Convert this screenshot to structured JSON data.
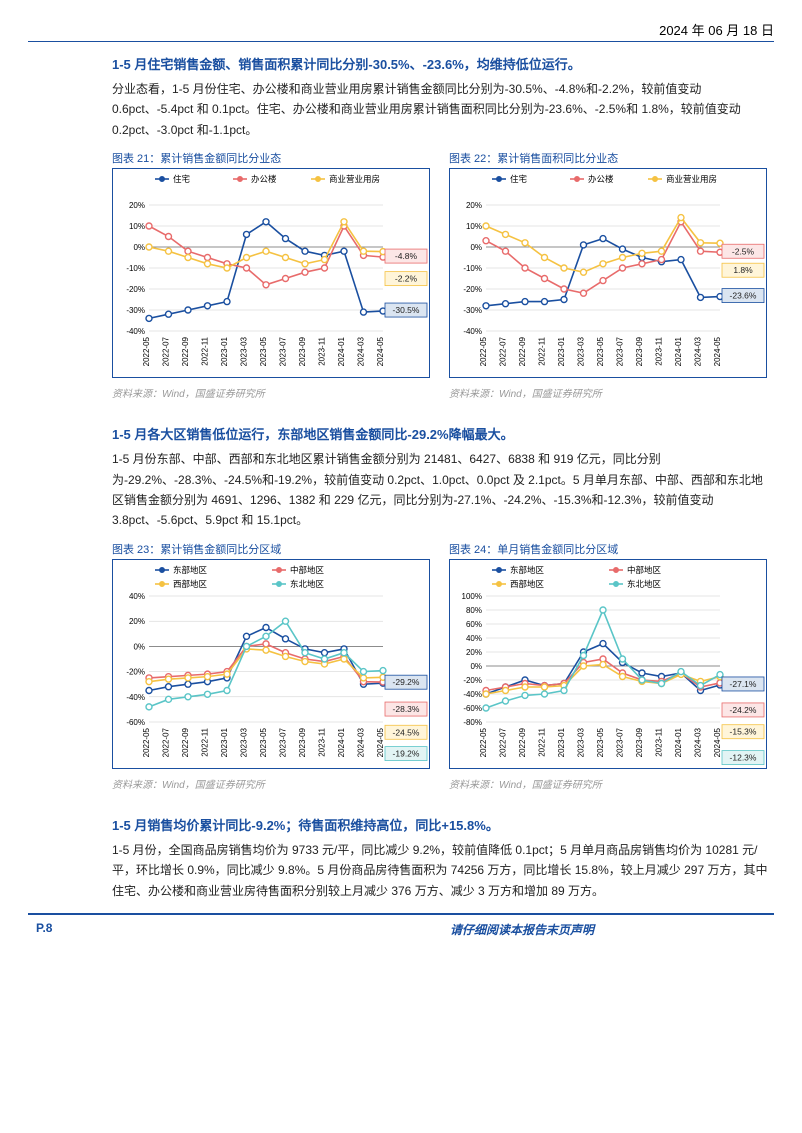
{
  "header": {
    "date": "2024 年 06 月 18 日"
  },
  "section1": {
    "title": "1-5 月住宅销售金额、销售面积累计同比分别-30.5%、-23.6%，均维持低位运行。",
    "body": "分业态看，1-5 月份住宅、办公楼和商业营业用房累计销售金额同比分别为-30.5%、-4.8%和-2.2%，较前值变动 0.6pct、-5.4pct 和 0.1pct。住宅、办公楼和商业营业用房累计销售面积同比分别为-23.6%、-2.5%和 1.8%，较前值变动 0.2pct、-3.0pct 和-1.1pct。"
  },
  "chart21": {
    "caption": "图表 21：累计销售金额同比分业态",
    "type": "line",
    "x": [
      "2022-05",
      "2022-07",
      "2022-09",
      "2022-11",
      "2023-01",
      "2023-03",
      "2023-05",
      "2023-07",
      "2023-09",
      "2023-11",
      "2024-01",
      "2024-03",
      "2024-05"
    ],
    "series": [
      {
        "name": "住宅",
        "color": "#1a4fa0",
        "values": [
          -34,
          -32,
          -30,
          -28,
          -26,
          6,
          12,
          4,
          -2,
          -4,
          -2,
          -31,
          -30.5
        ],
        "callout": "-30.5%",
        "callout_bg": "#dbe5f1",
        "callout_border": "#1a4fa0"
      },
      {
        "name": "办公楼",
        "color": "#e86b6b",
        "values": [
          10,
          5,
          -2,
          -5,
          -8,
          -10,
          -18,
          -15,
          -12,
          -10,
          10,
          -4,
          -4.8
        ],
        "callout": "-4.8%",
        "callout_bg": "#fce6e6",
        "callout_border": "#e86b6b"
      },
      {
        "name": "商业营业用房",
        "color": "#f5c242",
        "values": [
          0,
          -2,
          -5,
          -8,
          -10,
          -5,
          -2,
          -5,
          -8,
          -6,
          12,
          -2,
          -2.2
        ],
        "callout": "-2.2%",
        "callout_bg": "#fff5d9",
        "callout_border": "#f5c242"
      }
    ],
    "ylim": [
      -40,
      20
    ],
    "ytick_step": 10,
    "chart_bg": "#ffffff",
    "grid_color": "#cccccc",
    "line_width": 1.6,
    "marker_size": 3,
    "axis_fontsize": 8,
    "legend_fontsize": 8.5
  },
  "chart22": {
    "caption": "图表 22：累计销售面积同比分业态",
    "type": "line",
    "x": [
      "2022-05",
      "2022-07",
      "2022-09",
      "2022-11",
      "2023-01",
      "2023-03",
      "2023-05",
      "2023-07",
      "2023-09",
      "2023-11",
      "2024-01",
      "2024-03",
      "2024-05"
    ],
    "series": [
      {
        "name": "住宅",
        "color": "#1a4fa0",
        "values": [
          -28,
          -27,
          -26,
          -26,
          -25,
          1,
          4,
          -1,
          -5,
          -7,
          -6,
          -24,
          -23.6
        ],
        "callout": "-23.6%",
        "callout_bg": "#dbe5f1",
        "callout_border": "#1a4fa0"
      },
      {
        "name": "办公楼",
        "color": "#e86b6b",
        "values": [
          3,
          -2,
          -10,
          -15,
          -20,
          -22,
          -16,
          -10,
          -8,
          -6,
          12,
          -2,
          -2.5
        ],
        "callout": "-2.5%",
        "callout_bg": "#fce6e6",
        "callout_border": "#e86b6b"
      },
      {
        "name": "商业营业用房",
        "color": "#f5c242",
        "values": [
          10,
          6,
          2,
          -5,
          -10,
          -12,
          -8,
          -5,
          -3,
          -2,
          14,
          2,
          1.8
        ],
        "callout": "1.8%",
        "callout_bg": "#fff5d9",
        "callout_border": "#f5c242"
      }
    ],
    "ylim": [
      -40,
      20
    ],
    "ytick_step": 10,
    "chart_bg": "#ffffff",
    "grid_color": "#cccccc",
    "line_width": 1.6,
    "marker_size": 3,
    "axis_fontsize": 8,
    "legend_fontsize": 8.5
  },
  "section2": {
    "title": "1-5 月各大区销售低位运行，东部地区销售金额同比-29.2%降幅最大。",
    "body": "1-5 月份东部、中部、西部和东北地区累计销售金额分别为 21481、6427、6838 和 919 亿元，同比分别为-29.2%、-28.3%、-24.5%和-19.2%，较前值变动 0.2pct、1.0pct、0.0pct 及 2.1pct。5 月单月东部、中部、西部和东北地区销售金额分别为 4691、1296、1382 和 229 亿元，同比分别为-27.1%、-24.2%、-15.3%和-12.3%，较前值变动 3.8pct、-5.6pct、5.9pct 和 15.1pct。"
  },
  "chart23": {
    "caption": "图表 23：累计销售金额同比分区域",
    "type": "line",
    "x": [
      "2022-05",
      "2022-07",
      "2022-09",
      "2022-11",
      "2023-01",
      "2023-03",
      "2023-05",
      "2023-07",
      "2023-09",
      "2023-11",
      "2024-01",
      "2024-03",
      "2024-05"
    ],
    "series": [
      {
        "name": "东部地区",
        "color": "#1a4fa0",
        "values": [
          -35,
          -32,
          -30,
          -28,
          -25,
          8,
          15,
          6,
          -2,
          -5,
          -2,
          -30,
          -29.2
        ],
        "callout": "-29.2%",
        "callout_bg": "#dbe5f1",
        "callout_border": "#1a4fa0"
      },
      {
        "name": "中部地区",
        "color": "#e86b6b",
        "values": [
          -25,
          -24,
          -23,
          -22,
          -20,
          0,
          2,
          -5,
          -10,
          -12,
          -8,
          -28,
          -28.3
        ],
        "callout": "-28.3%",
        "callout_bg": "#fce6e6",
        "callout_border": "#e86b6b"
      },
      {
        "name": "西部地区",
        "color": "#f5c242",
        "values": [
          -28,
          -26,
          -25,
          -24,
          -22,
          -2,
          -3,
          -8,
          -12,
          -14,
          -10,
          -25,
          -24.5
        ],
        "callout": "-24.5%",
        "callout_bg": "#fff5d9",
        "callout_border": "#f5c242"
      },
      {
        "name": "东北地区",
        "color": "#5ac5c7",
        "values": [
          -48,
          -42,
          -40,
          -38,
          -35,
          0,
          8,
          20,
          -5,
          -10,
          -5,
          -20,
          -19.2
        ],
        "callout": "-19.2%",
        "callout_bg": "#e2f4f4",
        "callout_border": "#5ac5c7"
      }
    ],
    "ylim": [
      -60,
      40
    ],
    "ytick_step": 20,
    "chart_bg": "#ffffff",
    "grid_color": "#cccccc",
    "line_width": 1.6,
    "marker_size": 3,
    "axis_fontsize": 8,
    "legend_fontsize": 8.5
  },
  "chart24": {
    "caption": "图表 24：单月销售金额同比分区域",
    "type": "line",
    "x": [
      "2022-05",
      "2022-07",
      "2022-09",
      "2022-11",
      "2023-01",
      "2023-03",
      "2023-05",
      "2023-07",
      "2023-09",
      "2023-11",
      "2024-01",
      "2024-03",
      "2024-05"
    ],
    "series": [
      {
        "name": "东部地区",
        "color": "#1a4fa0",
        "values": [
          -40,
          -30,
          -20,
          -28,
          -25,
          20,
          32,
          5,
          -10,
          -15,
          -10,
          -35,
          -27.1
        ],
        "callout": "-27.1%",
        "callout_bg": "#dbe5f1",
        "callout_border": "#1a4fa0"
      },
      {
        "name": "中部地区",
        "color": "#e86b6b",
        "values": [
          -35,
          -30,
          -25,
          -28,
          -25,
          5,
          10,
          -10,
          -20,
          -22,
          -10,
          -30,
          -24.2
        ],
        "callout": "-24.2%",
        "callout_bg": "#fce6e6",
        "callout_border": "#e86b6b"
      },
      {
        "name": "西部地区",
        "color": "#f5c242",
        "values": [
          -40,
          -35,
          -30,
          -30,
          -28,
          0,
          2,
          -15,
          -22,
          -25,
          -12,
          -22,
          -15.3
        ],
        "callout": "-15.3%",
        "callout_bg": "#fff5d9",
        "callout_border": "#f5c242"
      },
      {
        "name": "东北地区",
        "color": "#5ac5c7",
        "values": [
          -60,
          -50,
          -42,
          -40,
          -35,
          15,
          80,
          10,
          -20,
          -25,
          -8,
          -28,
          -12.3
        ],
        "callout": "-12.3%",
        "callout_bg": "#e2f4f4",
        "callout_border": "#5ac5c7"
      }
    ],
    "ylim": [
      -80,
      100
    ],
    "ytick_step": 20,
    "chart_bg": "#ffffff",
    "grid_color": "#cccccc",
    "line_width": 1.6,
    "marker_size": 3,
    "axis_fontsize": 8,
    "legend_fontsize": 8.5
  },
  "section3": {
    "title": "1-5 月销售均价累计同比-9.2%；待售面积维持高位，同比+15.8%。",
    "body": "1-5 月份，全国商品房销售均价为 9733 元/平，同比减少 9.2%，较前值降低 0.1pct；5 月单月商品房销售均价为 10281 元/平，环比增长 0.9%，同比减少 9.8%。5 月份商品房待售面积为 74256 万方，同比增长 15.8%，较上月减少 297 万方，其中住宅、办公楼和商业营业房待售面积分别较上月减少 376 万方、减少 3 万方和增加 89 万方。"
  },
  "source": "资料来源：Wind，国盛证券研究所",
  "footer": {
    "page": "P.8",
    "disclaimer": "请仔细阅读本报告末页声明"
  }
}
